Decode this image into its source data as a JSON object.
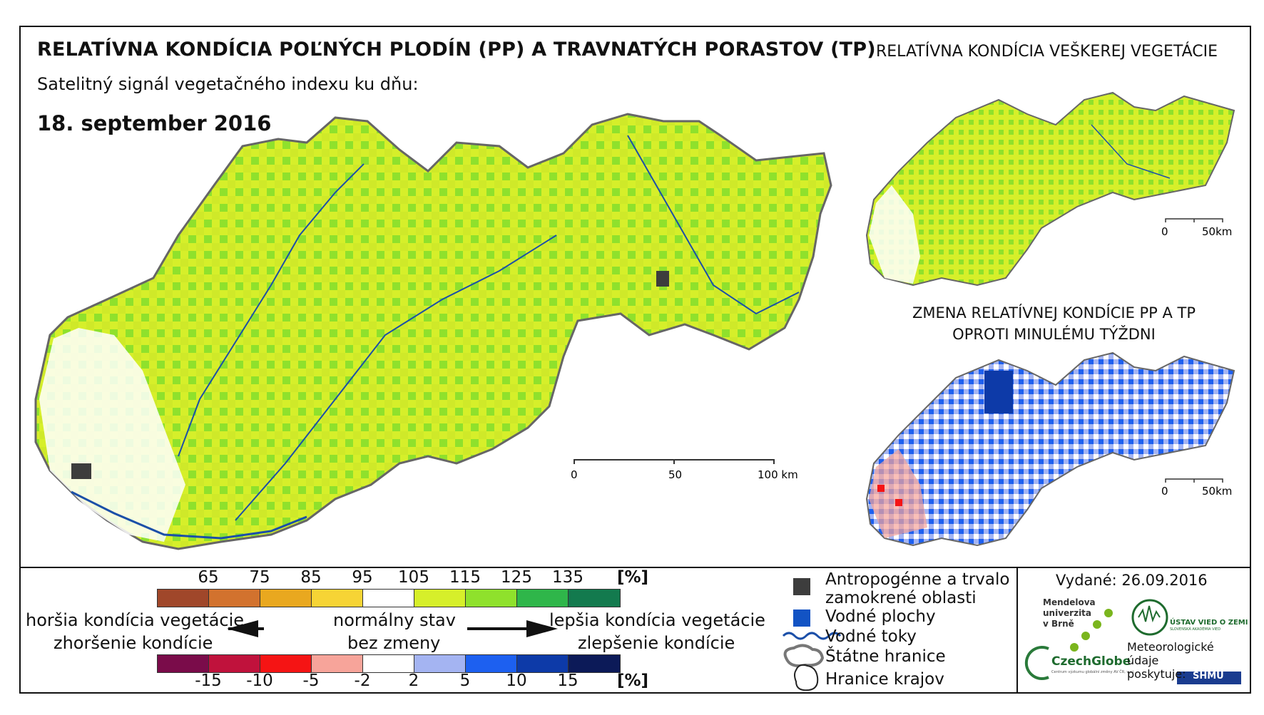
{
  "title": "RELATÍVNA KONDÍCIA POĽNÝCH PLODÍN (PP) A TRAVNATÝCH PORASTOV (TP)",
  "subtitle": "Satelitný signál vegetačného indexu ku dňu:",
  "date": "18. september 2016",
  "secondary_title": "RELATÍVNA KONDÍCIA VEŠKEREJ VEGETÁCIE",
  "change_title_line1": "ZMENA RELATÍVNEJ KONDÍCIE PP A TP",
  "change_title_line2": "OPROTI MINULÉMU TÝŽDNI",
  "main_scalebar": {
    "labels": [
      "0",
      "50",
      "100 km"
    ]
  },
  "small_scalebar": {
    "labels": [
      "0",
      "50km"
    ]
  },
  "condition_legend": {
    "ticks": [
      "65",
      "75",
      "85",
      "95",
      "105",
      "115",
      "125",
      "135"
    ],
    "unit": "[%]",
    "colors": [
      "#a0472a",
      "#d2722e",
      "#e9a81f",
      "#f6d435",
      "#ffffff",
      "#d6ef2a",
      "#8fe12c",
      "#2fb64a",
      "#137a4e"
    ]
  },
  "change_legend": {
    "ticks": [
      "-15",
      "-10",
      "-5",
      "-2",
      "2",
      "5",
      "10",
      "15"
    ],
    "unit": "[%]",
    "colors": [
      "#7a0c4a",
      "#c0123c",
      "#f51414",
      "#f7a49a",
      "#ffffff",
      "#a4b4f2",
      "#1d60f0",
      "#0d3aa8",
      "#0c1a58"
    ]
  },
  "arrow_labels": {
    "left_top": "horšia kondícia vegetácie",
    "left_bottom": "zhoršenie kondície",
    "center_top": "normálny stav",
    "center_bottom": "bez zmeny",
    "right_top": "lepšia kondícia vegetácie",
    "right_bottom": "zlepšenie kondície"
  },
  "symbol_legend": {
    "anthropogenic_line1": "Antropogénne a trvalo",
    "anthropogenic_line2": "zamokrené oblasti",
    "water_bodies": "Vodné plochy",
    "rivers": "Vodné toky",
    "state_border": "Štátne hranice",
    "region_border": "Hranice krajov",
    "colors": {
      "anthropogenic": "#3d3d3d",
      "water": "#1253c4",
      "river": "#1b4fa8"
    }
  },
  "issued": "Vydané: 26.09.2016",
  "logos": {
    "mendel_line1": "Mendelova",
    "mendel_line2": "univerzita",
    "mendel_line3": "v Brně",
    "czechglobe": "CzechGlobe",
    "czechglobe_small": "Centrum výzkumu globální změny AV ČR, v.v.i.",
    "uvoz": "ÚSTAV VIED O ZEMI",
    "uvoz_small": "SLOVENSKÁ AKADÉMIA VIED",
    "meteo_line1": "Meteorologické",
    "meteo_line2": "údaje",
    "meteo_line3": "poskytuje:",
    "shmu": "SHMÚ"
  }
}
